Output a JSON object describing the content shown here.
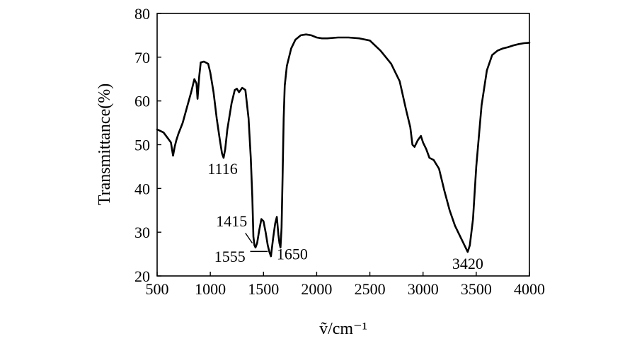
{
  "chart_data": {
    "type": "line",
    "xlabel": "ṽ/cm⁻¹",
    "ylabel": "Transmittance(%)",
    "xlim": [
      500,
      4000
    ],
    "ylim": [
      20,
      80
    ],
    "xticks": [
      500,
      1000,
      1500,
      2000,
      2500,
      3000,
      3500,
      4000
    ],
    "yticks": [
      20,
      30,
      40,
      50,
      60,
      70,
      80
    ],
    "grid": false,
    "legend": "none",
    "line_color": "#000000",
    "series": [
      {
        "x": [
          500,
          560,
          600,
          630,
          650,
          665,
          680,
          700,
          740,
          780,
          820,
          850,
          870,
          880,
          895,
          910,
          940,
          980,
          1000,
          1030,
          1060,
          1090,
          1110,
          1125,
          1140,
          1160,
          1200,
          1230,
          1250,
          1270,
          1300,
          1330,
          1360,
          1380,
          1395,
          1405,
          1415,
          1425,
          1440,
          1460,
          1480,
          1500,
          1520,
          1540,
          1555,
          1570,
          1590,
          1610,
          1625,
          1640,
          1650,
          1660,
          1670,
          1680,
          1690,
          1700,
          1720,
          1760,
          1800,
          1850,
          1900,
          1950,
          2000,
          2050,
          2100,
          2200,
          2300,
          2400,
          2500,
          2600,
          2700,
          2780,
          2840,
          2880,
          2900,
          2920,
          2950,
          2980,
          3000,
          3030,
          3060,
          3100,
          3150,
          3200,
          3250,
          3300,
          3350,
          3400,
          3420,
          3440,
          3470,
          3500,
          3550,
          3600,
          3650,
          3700,
          3750,
          3800,
          3850,
          3900,
          3950,
          4000
        ],
        "y": [
          53.5,
          52.8,
          51.5,
          50.5,
          47.5,
          49.5,
          51.0,
          52.5,
          55.0,
          58.5,
          62.0,
          65.0,
          64.0,
          60.5,
          65.5,
          68.8,
          69.0,
          68.5,
          66.5,
          62.0,
          56.0,
          51.0,
          48.0,
          47.0,
          49.0,
          53.5,
          59.5,
          62.5,
          62.8,
          62.0,
          63.0,
          62.5,
          56.0,
          47.0,
          38.0,
          29.0,
          27.0,
          26.5,
          27.5,
          30.5,
          33.0,
          32.5,
          30.0,
          27.0,
          25.5,
          24.5,
          28.5,
          32.0,
          33.5,
          29.5,
          27.5,
          26.5,
          31.0,
          43.0,
          56.0,
          63.5,
          68.0,
          72.0,
          74.0,
          75.0,
          75.2,
          75.0,
          74.5,
          74.3,
          74.3,
          74.5,
          74.5,
          74.3,
          73.8,
          71.5,
          68.5,
          64.5,
          58.0,
          54.0,
          50.0,
          49.5,
          51.0,
          52.0,
          50.5,
          49.0,
          47.0,
          46.5,
          44.5,
          39.5,
          35.0,
          31.5,
          29.0,
          26.5,
          25.5,
          27.0,
          33.0,
          45.0,
          59.0,
          67.0,
          70.5,
          71.5,
          72.0,
          72.3,
          72.7,
          73.0,
          73.2,
          73.3
        ]
      }
    ],
    "annotations": [
      {
        "text": "1116",
        "x": 1116
      },
      {
        "text": "1415",
        "x": 1415
      },
      {
        "text": "1555",
        "x": 1555
      },
      {
        "text": "1650",
        "x": 1650
      },
      {
        "text": "3420",
        "x": 3420
      }
    ]
  }
}
